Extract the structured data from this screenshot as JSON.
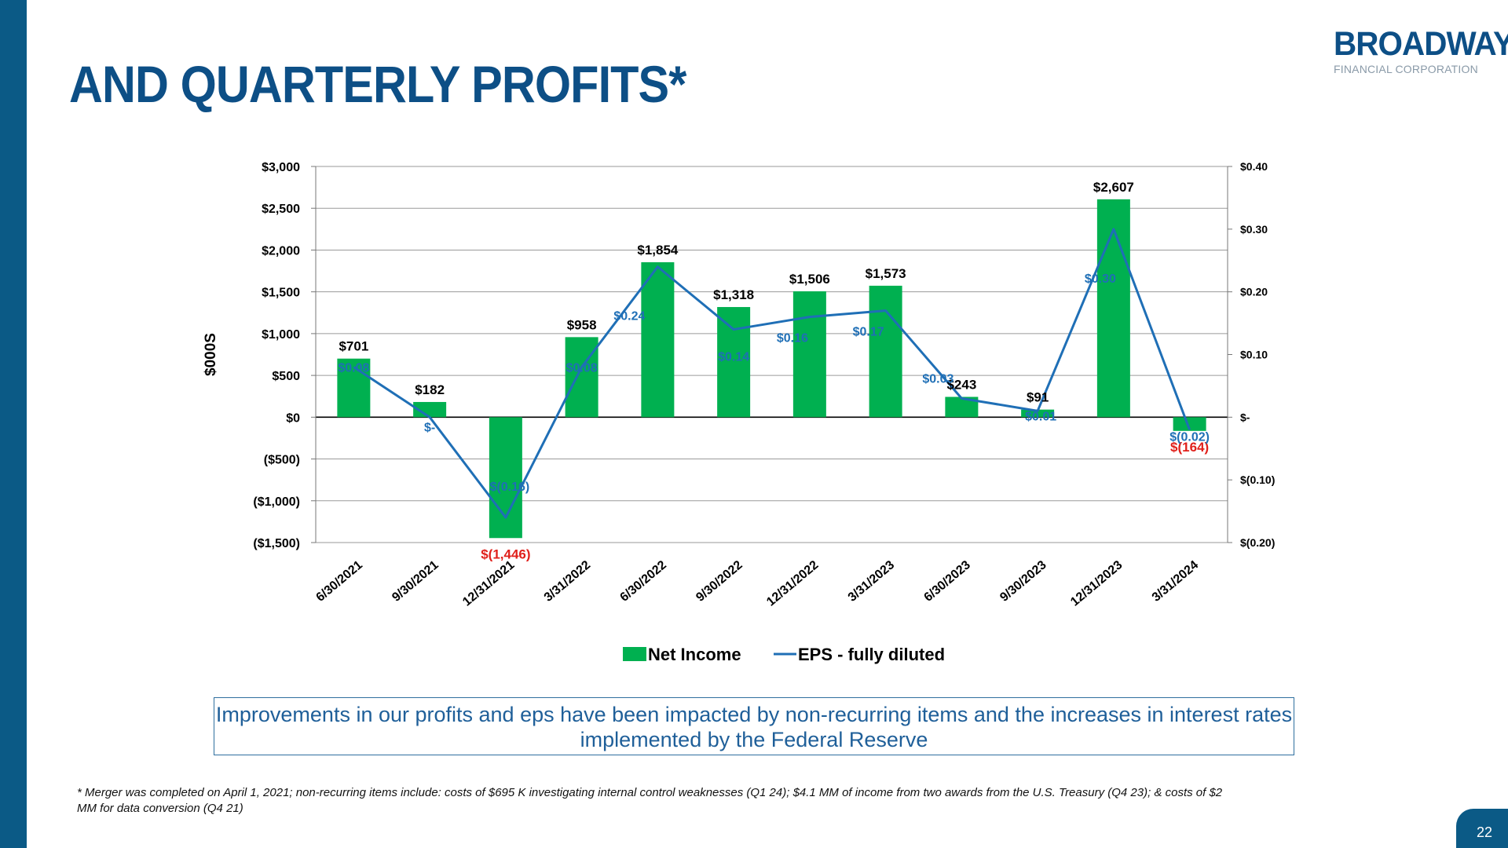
{
  "slide": {
    "title": "AND QUARTERLY PROFITS*",
    "page_number": "22",
    "accent_color": "#0b5a86",
    "logo": {
      "name": "BROADWAY",
      "subtitle": "FINANCIAL CORPORATION"
    },
    "callout": "Improvements in our profits and eps have been impacted by non-recurring items and the increases in interest rates implemented by the Federal Reserve",
    "footnote": "* Merger was completed on April 1, 2021; non-recurring items include: costs of $695 K investigating internal control weaknesses (Q1 24); $4.1 MM of income from two awards from the U.S. Treasury (Q4 23); & costs of $2 MM for data conversion (Q4 21)"
  },
  "chart_data": {
    "type": "bar",
    "title": "",
    "xlabel": "",
    "ylabel": "$000S",
    "y2label": "",
    "categories": [
      "6/30/2021",
      "9/30/2021",
      "12/31/2021",
      "3/31/2022",
      "6/30/2022",
      "9/30/2022",
      "12/31/2022",
      "3/31/2023",
      "6/30/2023",
      "9/30/2023",
      "12/31/2023",
      "3/31/2024"
    ],
    "ylim": [
      -1500,
      3000
    ],
    "y_ticks": [
      -1500,
      -1000,
      -500,
      0,
      500,
      1000,
      1500,
      2000,
      2500,
      3000
    ],
    "y_tick_labels": [
      "($1,500)",
      "($1,000)",
      "($500)",
      "$0",
      "$500",
      "$1,000",
      "$1,500",
      "$2,000",
      "$2,500",
      "$3,000"
    ],
    "y2lim": [
      -0.2,
      0.4
    ],
    "y2_ticks": [
      -0.2,
      -0.1,
      0,
      0.1,
      0.2,
      0.3,
      0.4
    ],
    "y2_tick_labels": [
      "$(0.20)",
      "$(0.10)",
      "$-",
      "$0.10",
      "$0.20",
      "$0.30",
      "$0.40"
    ],
    "grid": true,
    "legend_position": "bottom",
    "series": [
      {
        "name": "Net Income",
        "type": "bar",
        "axis": "left",
        "color": "#00b050",
        "negative_label_color": "#e0201b",
        "values": [
          701,
          182,
          -1446,
          958,
          1854,
          1318,
          1506,
          1573,
          243,
          91,
          2607,
          -164
        ],
        "labels": [
          "$701",
          "$182",
          "$(1,446)",
          "$958",
          "$1,854",
          "$1,318",
          "$1,506",
          "$1,573",
          "$243",
          "$91",
          "$2,607",
          "$(164)"
        ]
      },
      {
        "name": "EPS - fully diluted",
        "type": "line",
        "axis": "right",
        "color": "#1f6fb6",
        "values": [
          0.08,
          0.0,
          -0.16,
          0.08,
          0.24,
          0.14,
          0.16,
          0.17,
          0.03,
          0.01,
          0.3,
          -0.02
        ],
        "labels": [
          "$0.08",
          "$-",
          "$(0.16)",
          "$0.08",
          "$0.24",
          "$0.14",
          "$0.16",
          "$0.17",
          "$0.03",
          "$0.01",
          "$0.30",
          "$(0.02)"
        ]
      }
    ]
  }
}
